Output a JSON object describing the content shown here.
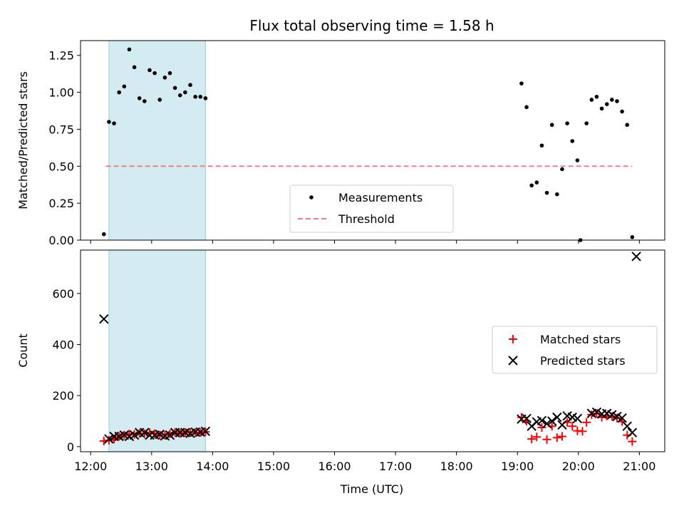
{
  "chart_data": [
    {
      "type": "scatter",
      "title": "Flux total observing time = 1.58 h",
      "xlabel": "",
      "ylabel": "Matched/Predicted stars",
      "ylim": [
        0,
        1.35
      ],
      "yticks": [
        0.0,
        0.25,
        0.5,
        0.75,
        1.0,
        1.25
      ],
      "ytick_labels": [
        "0.00",
        "0.25",
        "0.50",
        "0.75",
        "1.00",
        "1.25"
      ],
      "xlim": [
        "11:50",
        "21:25"
      ],
      "highlight_span": [
        "12:18",
        "13:53"
      ],
      "highlight_color": "#add8e6",
      "threshold": {
        "name": "Threshold",
        "y": 0.5,
        "x_start": "12:15",
        "x_end": "20:53",
        "color": "#f08080",
        "style": "dashed"
      },
      "legend": {
        "position": "bottom-center",
        "entries": [
          "Measurements",
          "Threshold"
        ]
      },
      "series": [
        {
          "name": "Measurements",
          "color": "#000000",
          "points": [
            [
              "12:13",
              0.04
            ],
            [
              "12:18",
              0.8
            ],
            [
              "12:23",
              0.79
            ],
            [
              "12:28",
              1.0
            ],
            [
              "12:33",
              1.04
            ],
            [
              "12:38",
              1.29
            ],
            [
              "12:43",
              1.17
            ],
            [
              "12:48",
              0.96
            ],
            [
              "12:53",
              0.94
            ],
            [
              "12:58",
              1.15
            ],
            [
              "13:03",
              1.13
            ],
            [
              "13:08",
              0.95
            ],
            [
              "13:13",
              1.1
            ],
            [
              "13:18",
              1.13
            ],
            [
              "13:23",
              1.03
            ],
            [
              "13:28",
              0.98
            ],
            [
              "13:33",
              1.0
            ],
            [
              "13:38",
              1.05
            ],
            [
              "13:43",
              0.97
            ],
            [
              "13:48",
              0.97
            ],
            [
              "13:53",
              0.96
            ],
            [
              "19:04",
              1.06
            ],
            [
              "19:09",
              0.9
            ],
            [
              "19:14",
              0.37
            ],
            [
              "19:19",
              0.39
            ],
            [
              "19:24",
              0.64
            ],
            [
              "19:29",
              0.32
            ],
            [
              "19:34",
              0.78
            ],
            [
              "19:39",
              0.31
            ],
            [
              "19:44",
              0.48
            ],
            [
              "19:49",
              0.79
            ],
            [
              "19:54",
              0.67
            ],
            [
              "19:59",
              0.54
            ],
            [
              "20:02",
              0.0
            ],
            [
              "20:08",
              0.79
            ],
            [
              "20:13",
              0.95
            ],
            [
              "20:18",
              0.97
            ],
            [
              "20:23",
              0.89
            ],
            [
              "20:28",
              0.92
            ],
            [
              "20:33",
              0.95
            ],
            [
              "20:38",
              0.94
            ],
            [
              "20:43",
              0.87
            ],
            [
              "20:48",
              0.78
            ],
            [
              "20:53",
              0.02
            ]
          ]
        }
      ]
    },
    {
      "type": "scatter",
      "title": "",
      "xlabel": "Time (UTC)",
      "ylabel": "Count",
      "ylim": [
        -20,
        770
      ],
      "yticks": [
        0,
        200,
        400,
        600
      ],
      "ytick_labels": [
        "0",
        "200",
        "400",
        "600"
      ],
      "xticks": [
        "12:00",
        "13:00",
        "14:00",
        "15:00",
        "16:00",
        "17:00",
        "18:00",
        "19:00",
        "20:00",
        "21:00"
      ],
      "xtick_labels": [
        "12:00",
        "13:00",
        "14:00",
        "15:00",
        "16:00",
        "17:00",
        "18:00",
        "19:00",
        "20:00",
        "21:00"
      ],
      "xlim": [
        "11:50",
        "21:25"
      ],
      "highlight_span": [
        "12:18",
        "13:53"
      ],
      "highlight_color": "#add8e6",
      "legend": {
        "position": "center-right",
        "entries": [
          "Matched stars",
          "Predicted stars"
        ]
      },
      "series": [
        {
          "name": "Matched stars",
          "color": "#ff0000",
          "marker": "plus",
          "points": [
            [
              "12:13",
              22
            ],
            [
              "12:18",
              25
            ],
            [
              "12:23",
              30
            ],
            [
              "12:28",
              40
            ],
            [
              "12:33",
              45
            ],
            [
              "12:38",
              50
            ],
            [
              "12:43",
              48
            ],
            [
              "12:48",
              52
            ],
            [
              "12:53",
              50
            ],
            [
              "12:58",
              55
            ],
            [
              "13:03",
              50
            ],
            [
              "13:08",
              45
            ],
            [
              "13:13",
              45
            ],
            [
              "13:18",
              50
            ],
            [
              "13:23",
              55
            ],
            [
              "13:28",
              52
            ],
            [
              "13:33",
              55
            ],
            [
              "13:38",
              55
            ],
            [
              "13:43",
              55
            ],
            [
              "13:48",
              55
            ],
            [
              "13:53",
              58
            ],
            [
              "19:04",
              115
            ],
            [
              "19:09",
              100
            ],
            [
              "19:14",
              30
            ],
            [
              "19:19",
              38
            ],
            [
              "19:24",
              75
            ],
            [
              "19:29",
              28
            ],
            [
              "19:34",
              80
            ],
            [
              "19:39",
              35
            ],
            [
              "19:44",
              40
            ],
            [
              "19:49",
              95
            ],
            [
              "19:54",
              80
            ],
            [
              "19:59",
              62
            ],
            [
              "20:04",
              60
            ],
            [
              "20:08",
              95
            ],
            [
              "20:13",
              125
            ],
            [
              "20:18",
              130
            ],
            [
              "20:23",
              115
            ],
            [
              "20:28",
              120
            ],
            [
              "20:33",
              118
            ],
            [
              "20:38",
              112
            ],
            [
              "20:43",
              98
            ],
            [
              "20:48",
              45
            ],
            [
              "20:53",
              20
            ]
          ]
        },
        {
          "name": "Predicted stars",
          "color": "#000000",
          "marker": "x",
          "points": [
            [
              "12:13",
              500
            ],
            [
              "12:18",
              30
            ],
            [
              "12:23",
              40
            ],
            [
              "12:28",
              40
            ],
            [
              "12:33",
              45
            ],
            [
              "12:38",
              40
            ],
            [
              "12:43",
              45
            ],
            [
              "12:48",
              55
            ],
            [
              "12:53",
              55
            ],
            [
              "12:58",
              45
            ],
            [
              "13:03",
              45
            ],
            [
              "13:08",
              48
            ],
            [
              "13:13",
              42
            ],
            [
              "13:18",
              45
            ],
            [
              "13:23",
              55
            ],
            [
              "13:28",
              55
            ],
            [
              "13:33",
              55
            ],
            [
              "13:38",
              52
            ],
            [
              "13:43",
              57
            ],
            [
              "13:48",
              57
            ],
            [
              "13:53",
              60
            ],
            [
              "19:04",
              108
            ],
            [
              "19:09",
              110
            ],
            [
              "19:14",
              80
            ],
            [
              "19:19",
              97
            ],
            [
              "19:24",
              102
            ],
            [
              "19:29",
              90
            ],
            [
              "19:34",
              100
            ],
            [
              "19:39",
              115
            ],
            [
              "19:44",
              85
            ],
            [
              "19:49",
              120
            ],
            [
              "19:54",
              115
            ],
            [
              "19:59",
              110
            ],
            [
              "20:13",
              130
            ],
            [
              "20:18",
              135
            ],
            [
              "20:23",
              128
            ],
            [
              "20:28",
              130
            ],
            [
              "20:33",
              125
            ],
            [
              "20:38",
              118
            ],
            [
              "20:43",
              112
            ],
            [
              "20:48",
              80
            ],
            [
              "20:53",
              55
            ],
            [
              "20:57",
              745
            ]
          ]
        }
      ]
    }
  ]
}
